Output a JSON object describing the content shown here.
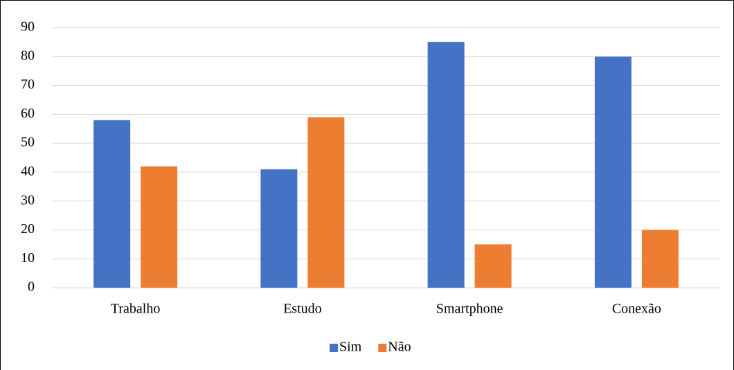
{
  "chart_data": {
    "type": "bar",
    "categories": [
      "Trabalho",
      "Estudo",
      "Smartphone",
      "Conexão"
    ],
    "series": [
      {
        "name": "Sim",
        "color": "#4472c4",
        "values": [
          58,
          41,
          85,
          80
        ]
      },
      {
        "name": "Não",
        "color": "#ed7d31",
        "values": [
          42,
          59,
          15,
          20
        ]
      }
    ],
    "ylim": [
      0,
      90
    ],
    "yticks": [
      0,
      10,
      20,
      30,
      40,
      50,
      60,
      70,
      80,
      90
    ],
    "grid": true,
    "legend": "bottom"
  }
}
